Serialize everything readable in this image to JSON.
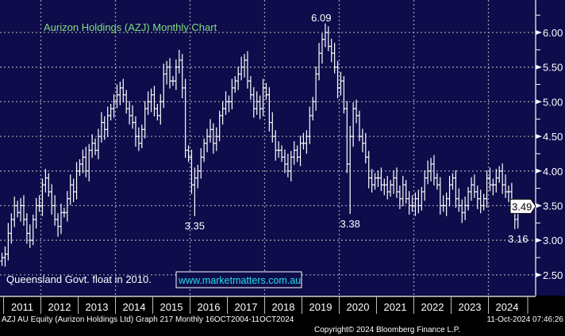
{
  "chart_data": {
    "type": "bar",
    "subtype": "ohlc-monthly",
    "title": "Aurizon Holdings (AZJ) Monthly Chart",
    "ylim": [
      2.2,
      6.45
    ],
    "yticks": [
      "6.00",
      "5.50",
      "5.00",
      "4.50",
      "4.00",
      "3.50",
      "3.00",
      "2.50"
    ],
    "ytick_values": [
      6.0,
      5.5,
      5.0,
      4.5,
      4.0,
      3.5,
      3.0,
      2.5
    ],
    "xticks": [
      "2011",
      "2012",
      "2013",
      "2014",
      "2015",
      "2016",
      "2017",
      "2018",
      "2019",
      "2020",
      "2021",
      "2022",
      "2023",
      "2024"
    ],
    "start": "Dec 2010",
    "grid": true,
    "closes": [
      2.75,
      2.8,
      3.1,
      3.3,
      3.5,
      3.4,
      3.5,
      3.3,
      3.1,
      3.0,
      3.3,
      3.5,
      3.5,
      3.8,
      3.9,
      3.7,
      3.5,
      3.3,
      3.2,
      3.4,
      3.4,
      3.6,
      3.8,
      3.7,
      4.0,
      4.1,
      4.2,
      4.0,
      4.3,
      4.4,
      4.3,
      4.5,
      4.7,
      4.6,
      4.8,
      4.9,
      5.0,
      5.1,
      5.2,
      5.1,
      4.9,
      4.8,
      4.7,
      4.5,
      4.4,
      4.6,
      4.9,
      5.0,
      5.1,
      4.9,
      4.8,
      5.0,
      5.4,
      5.5,
      5.3,
      5.3,
      5.5,
      5.6,
      5.2,
      4.3,
      4.2,
      3.8,
      3.9,
      4.0,
      4.2,
      4.4,
      4.5,
      4.6,
      4.4,
      4.5,
      4.8,
      4.9,
      5.0,
      5.0,
      5.2,
      5.3,
      5.4,
      5.5,
      5.6,
      5.3,
      5.1,
      4.9,
      5.0,
      4.9,
      5.2,
      5.1,
      4.7,
      4.5,
      4.3,
      4.3,
      4.2,
      4.1,
      4.0,
      4.2,
      4.3,
      4.2,
      4.4,
      4.4,
      4.5,
      4.8,
      5.0,
      5.4,
      5.7,
      5.9,
      6.0,
      5.8,
      5.7,
      5.5,
      5.2,
      5.3,
      4.9,
      4.1,
      4.5,
      4.9,
      4.8,
      4.5,
      4.4,
      4.2,
      3.9,
      3.8,
      3.9,
      3.9,
      3.8,
      3.8,
      3.7,
      3.8,
      3.9,
      3.7,
      3.6,
      3.8,
      3.6,
      3.5,
      3.5,
      3.6,
      3.5,
      3.7,
      3.9,
      4.0,
      4.1,
      3.9,
      3.8,
      3.5,
      3.5,
      3.6,
      3.8,
      3.9,
      3.6,
      3.5,
      3.4,
      3.5,
      3.7,
      3.8,
      3.7,
      3.6,
      3.5,
      3.6,
      3.9,
      3.8,
      3.8,
      3.9,
      4.0,
      3.8,
      3.7,
      3.7,
      3.5,
      3.3,
      3.49
    ],
    "extremes": [
      {
        "month": 62,
        "low": 3.35,
        "label": "3.35"
      },
      {
        "month": 105,
        "high": 6.09,
        "label": "6.09"
      },
      {
        "month": 112,
        "low": 3.38,
        "label": "3.38"
      },
      {
        "month": 165,
        "low": 3.16,
        "label": "3.16"
      }
    ],
    "last_price": "3.49",
    "last_value": 3.49,
    "annotations": {
      "note": "Queensland Govt. float in 2010.",
      "website": "www.marketmatters.com.au"
    }
  },
  "footer": {
    "security": "AZJ AU Equity (Aurizon Holdings Ltd) Graph 217  Monthly 16OCT2004-11OCT2024",
    "copyright": "Copyright© 2024 Bloomberg Finance L.P.",
    "timestamp": "11-Oct-2024 07:46:26"
  },
  "colors": {
    "plot_bg": "#0e0c4a",
    "title": "#7ee07e",
    "website": "#22e0e8",
    "bars": "#ffffff",
    "grid": "#9a9aa8"
  }
}
